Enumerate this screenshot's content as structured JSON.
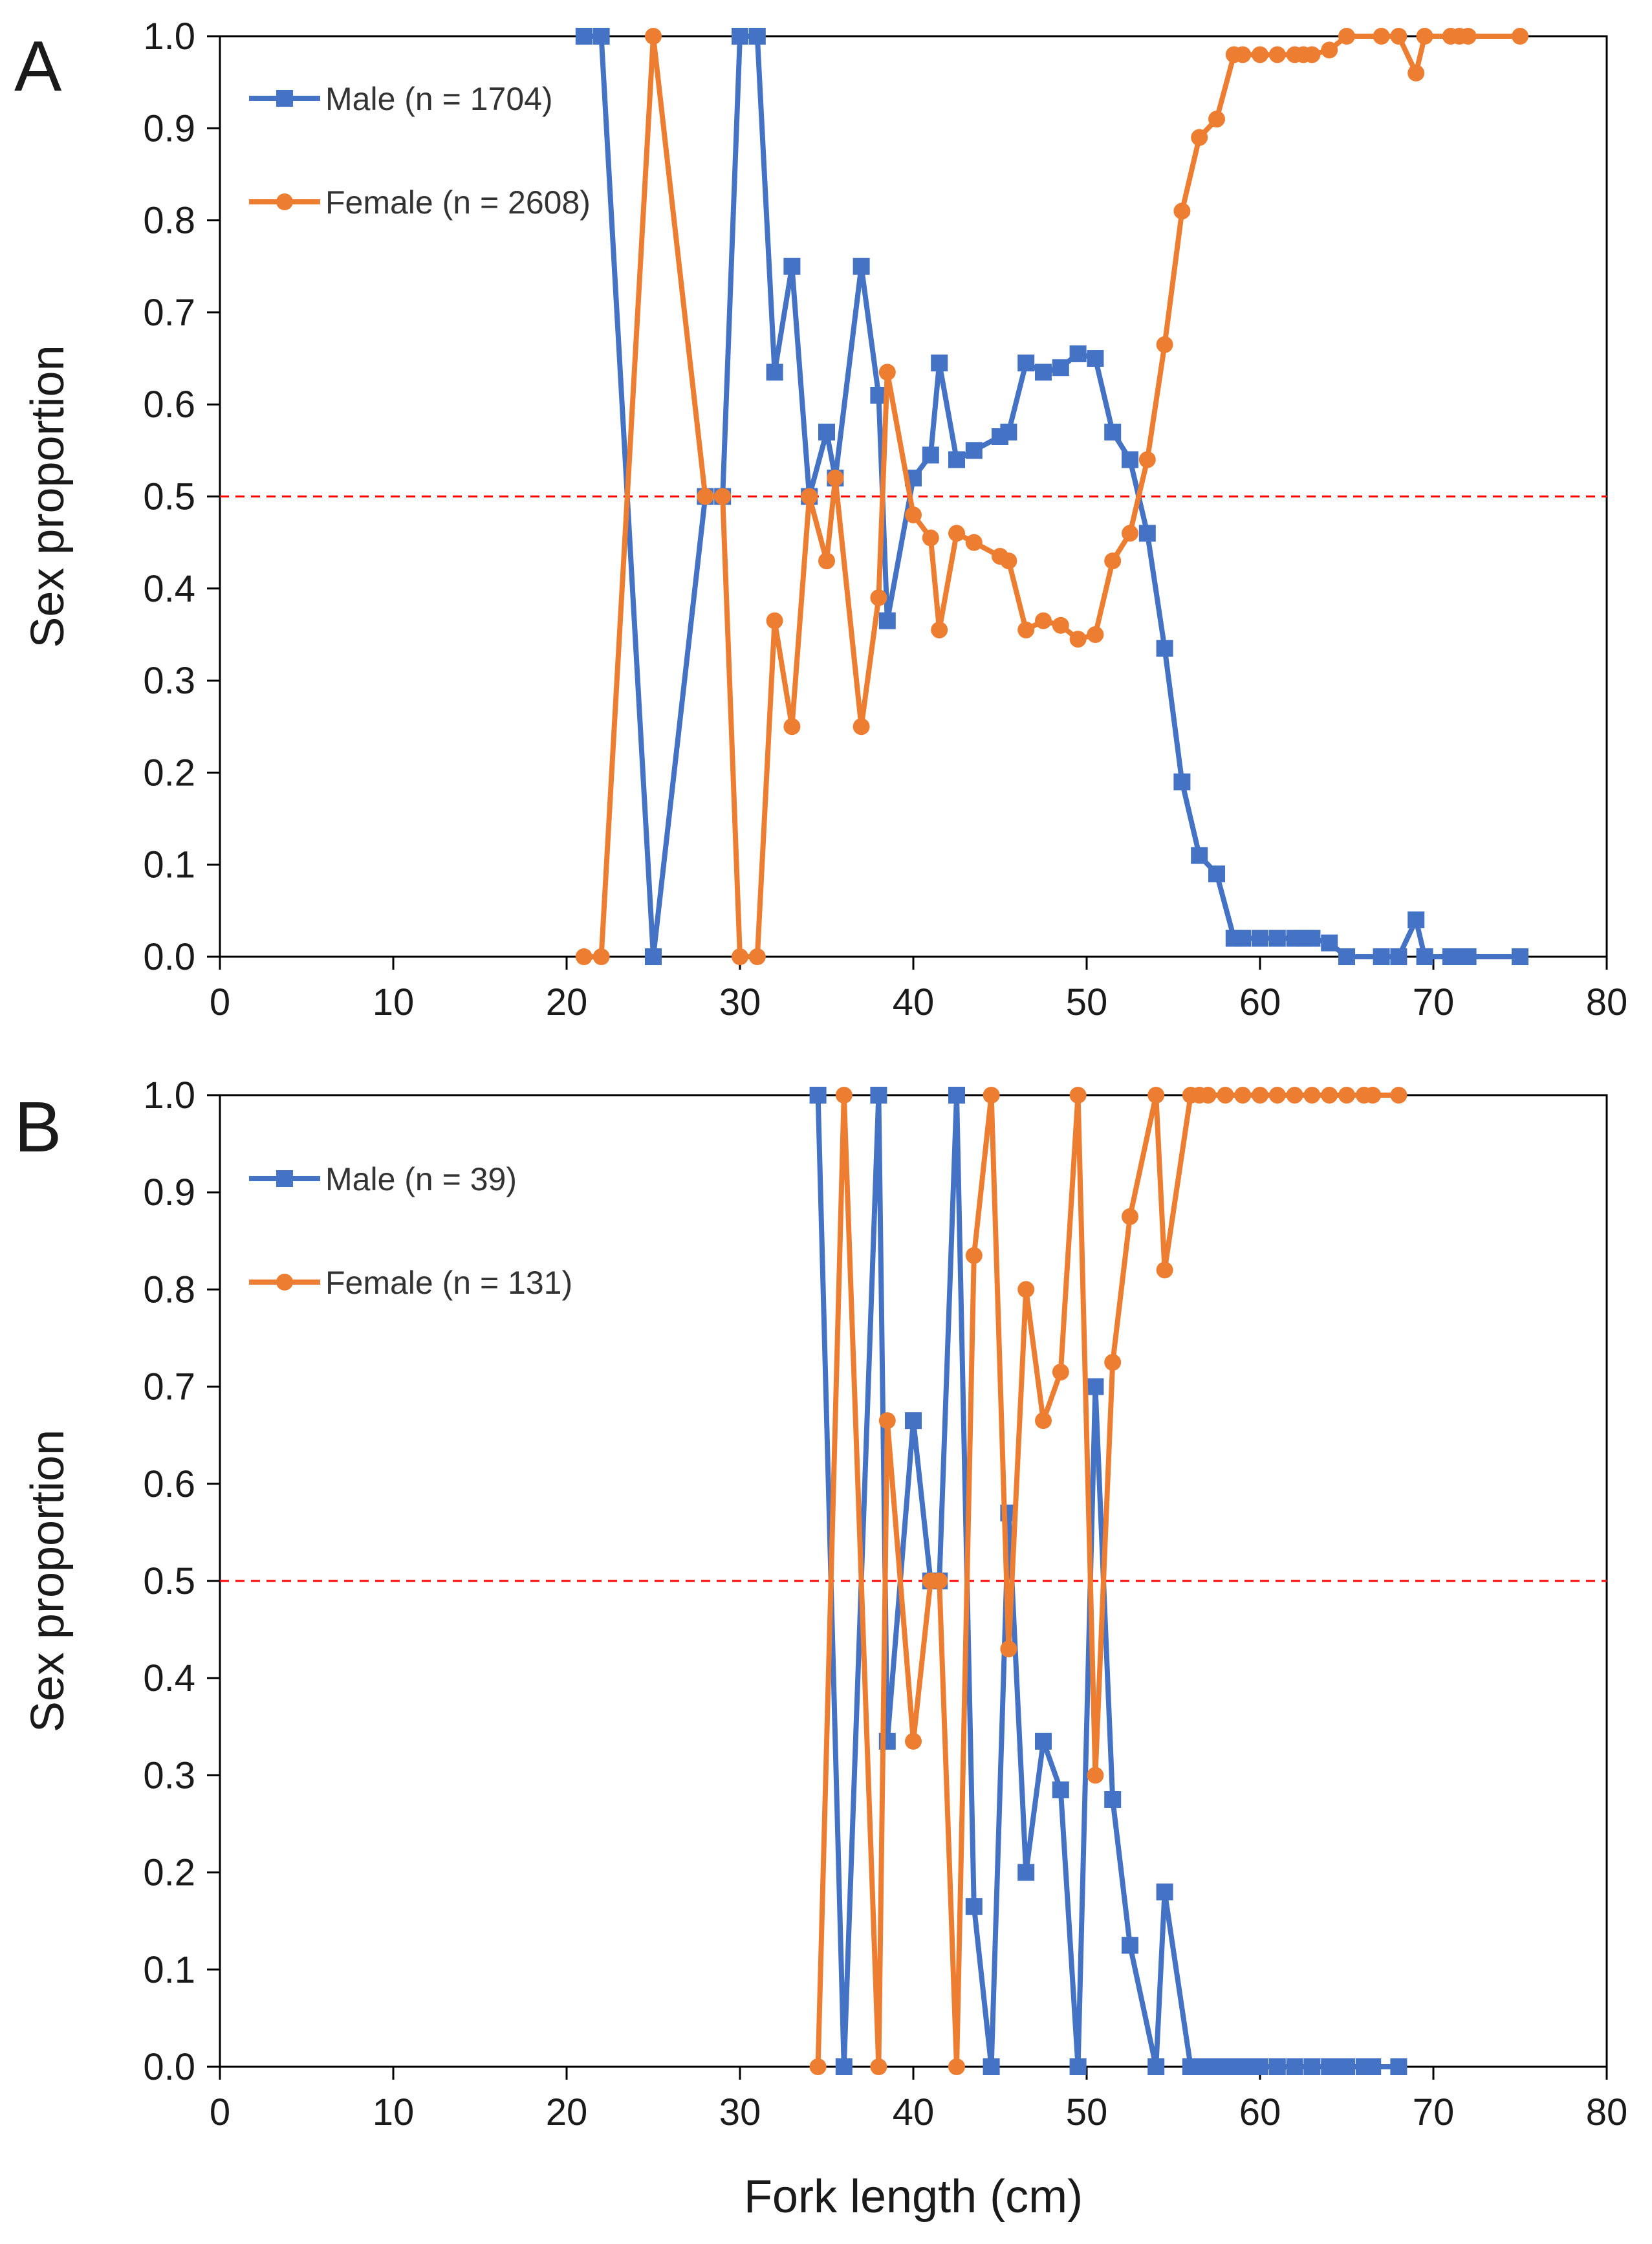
{
  "chart_data": [
    {
      "type": "line",
      "panel_label": "A",
      "xlabel": "",
      "ylabel": "Sex proportion",
      "xlim": [
        0,
        80
      ],
      "ylim": [
        0,
        1
      ],
      "x_ticks": [
        "0",
        "10",
        "20",
        "30",
        "40",
        "50",
        "60",
        "70",
        "80"
      ],
      "y_ticks": [
        "0.0",
        "0.1",
        "0.2",
        "0.3",
        "0.4",
        "0.5",
        "0.6",
        "0.7",
        "0.8",
        "0.9",
        "1.0"
      ],
      "reference_line": {
        "y": 0.5,
        "style": "dashed",
        "color": "#ff0000"
      },
      "grid": false,
      "legend_position": "top-left",
      "series": [
        {
          "name": "Male (n = 1704)",
          "color": "#4472c4",
          "marker": "square",
          "points": [
            [
              21,
              1
            ],
            [
              22,
              1
            ],
            [
              25,
              0
            ],
            [
              28,
              0.5
            ],
            [
              29,
              0.5
            ],
            [
              30,
              1
            ],
            [
              31,
              1
            ],
            [
              32,
              0.635
            ],
            [
              33,
              0.75
            ],
            [
              34,
              0.5
            ],
            [
              35,
              0.57
            ],
            [
              35.5,
              0.52
            ],
            [
              37,
              0.75
            ],
            [
              38,
              0.61
            ],
            [
              38.5,
              0.365
            ],
            [
              40,
              0.52
            ],
            [
              41,
              0.545
            ],
            [
              41.5,
              0.645
            ],
            [
              42.5,
              0.54
            ],
            [
              43.5,
              0.55
            ],
            [
              45,
              0.565
            ],
            [
              45.5,
              0.57
            ],
            [
              46.5,
              0.645
            ],
            [
              47.5,
              0.635
            ],
            [
              48.5,
              0.64
            ],
            [
              49.5,
              0.655
            ],
            [
              50.5,
              0.65
            ],
            [
              51.5,
              0.57
            ],
            [
              52.5,
              0.54
            ],
            [
              53.5,
              0.46
            ],
            [
              54.5,
              0.335
            ],
            [
              55.5,
              0.19
            ],
            [
              56.5,
              0.11
            ],
            [
              57.5,
              0.09
            ],
            [
              58.5,
              0.02
            ],
            [
              59,
              0.02
            ],
            [
              60,
              0.02
            ],
            [
              61,
              0.02
            ],
            [
              62,
              0.02
            ],
            [
              62.5,
              0.02
            ],
            [
              63,
              0.02
            ],
            [
              64,
              0.015
            ],
            [
              65,
              0.0
            ],
            [
              67,
              0.0
            ],
            [
              68,
              0.0
            ],
            [
              69,
              0.04
            ],
            [
              69.5,
              0.0
            ],
            [
              71,
              0.0
            ],
            [
              71.5,
              0.0
            ],
            [
              72,
              0.0
            ],
            [
              75,
              0.0
            ]
          ]
        },
        {
          "name": "Female (n = 2608)",
          "color": "#ed7d31",
          "marker": "circle",
          "points": [
            [
              21,
              0
            ],
            [
              22,
              0
            ],
            [
              25,
              1
            ],
            [
              28,
              0.5
            ],
            [
              29,
              0.5
            ],
            [
              30,
              0
            ],
            [
              31,
              0
            ],
            [
              32,
              0.365
            ],
            [
              33,
              0.25
            ],
            [
              34,
              0.5
            ],
            [
              35,
              0.43
            ],
            [
              35.5,
              0.52
            ],
            [
              37,
              0.25
            ],
            [
              38,
              0.39
            ],
            [
              38.5,
              0.635
            ],
            [
              40,
              0.48
            ],
            [
              41,
              0.455
            ],
            [
              41.5,
              0.355
            ],
            [
              42.5,
              0.46
            ],
            [
              43.5,
              0.45
            ],
            [
              45,
              0.435
            ],
            [
              45.5,
              0.43
            ],
            [
              46.5,
              0.355
            ],
            [
              47.5,
              0.365
            ],
            [
              48.5,
              0.36
            ],
            [
              49.5,
              0.345
            ],
            [
              50.5,
              0.35
            ],
            [
              51.5,
              0.43
            ],
            [
              52.5,
              0.46
            ],
            [
              53.5,
              0.54
            ],
            [
              54.5,
              0.665
            ],
            [
              55.5,
              0.81
            ],
            [
              56.5,
              0.89
            ],
            [
              57.5,
              0.91
            ],
            [
              58.5,
              0.98
            ],
            [
              59,
              0.98
            ],
            [
              60,
              0.98
            ],
            [
              61,
              0.98
            ],
            [
              62,
              0.98
            ],
            [
              62.5,
              0.98
            ],
            [
              63,
              0.98
            ],
            [
              64,
              0.985
            ],
            [
              65,
              1.0
            ],
            [
              67,
              1.0
            ],
            [
              68,
              1.0
            ],
            [
              69,
              0.96
            ],
            [
              69.5,
              1.0
            ],
            [
              71,
              1.0
            ],
            [
              71.5,
              1.0
            ],
            [
              72,
              1.0
            ],
            [
              75,
              1.0
            ]
          ]
        }
      ]
    },
    {
      "type": "line",
      "panel_label": "B",
      "xlabel": "Fork length  (cm)",
      "ylabel": "Sex proportion",
      "xlim": [
        0,
        80
      ],
      "ylim": [
        0,
        1
      ],
      "x_ticks": [
        "0",
        "10",
        "20",
        "30",
        "40",
        "50",
        "60",
        "70",
        "80"
      ],
      "y_ticks": [
        "0.0",
        "0.1",
        "0.2",
        "0.3",
        "0.4",
        "0.5",
        "0.6",
        "0.7",
        "0.8",
        "0.9",
        "1.0"
      ],
      "reference_line": {
        "y": 0.5,
        "style": "dashed",
        "color": "#ff0000"
      },
      "grid": false,
      "legend_position": "top-left",
      "series": [
        {
          "name": "Male (n = 39)",
          "color": "#4472c4",
          "marker": "square",
          "points": [
            [
              34.5,
              1
            ],
            [
              36,
              0
            ],
            [
              38,
              1
            ],
            [
              38.5,
              0.335
            ],
            [
              40,
              0.665
            ],
            [
              41,
              0.5
            ],
            [
              41.5,
              0.5
            ],
            [
              42.5,
              1
            ],
            [
              43.5,
              0.165
            ],
            [
              44.5,
              0
            ],
            [
              45.5,
              0.57
            ],
            [
              46.5,
              0.2
            ],
            [
              47.5,
              0.335
            ],
            [
              48.5,
              0.285
            ],
            [
              49.5,
              0
            ],
            [
              50.5,
              0.7
            ],
            [
              51.5,
              0.275
            ],
            [
              52.5,
              0.125
            ],
            [
              54,
              0
            ],
            [
              54.5,
              0.18
            ],
            [
              56,
              0
            ],
            [
              56.5,
              0
            ],
            [
              57,
              0
            ],
            [
              57.5,
              0
            ],
            [
              58,
              0
            ],
            [
              58.5,
              0
            ],
            [
              59,
              0
            ],
            [
              59.5,
              0
            ],
            [
              60,
              0
            ],
            [
              61,
              0
            ],
            [
              62,
              0
            ],
            [
              63,
              0
            ],
            [
              64,
              0
            ],
            [
              64.5,
              0
            ],
            [
              65,
              0
            ],
            [
              66,
              0
            ],
            [
              66.5,
              0
            ],
            [
              68,
              0
            ]
          ]
        },
        {
          "name": "Female (n = 131)",
          "color": "#ed7d31",
          "marker": "circle",
          "points": [
            [
              34.5,
              0
            ],
            [
              36,
              1
            ],
            [
              38,
              0
            ],
            [
              38.5,
              0.665
            ],
            [
              40,
              0.335
            ],
            [
              41,
              0.5
            ],
            [
              41.5,
              0.5
            ],
            [
              42.5,
              0
            ],
            [
              43.5,
              0.835
            ],
            [
              44.5,
              1
            ],
            [
              45.5,
              0.43
            ],
            [
              46.5,
              0.8
            ],
            [
              47.5,
              0.665
            ],
            [
              48.5,
              0.715
            ],
            [
              49.5,
              1
            ],
            [
              50.5,
              0.3
            ],
            [
              51.5,
              0.725
            ],
            [
              52.5,
              0.875
            ],
            [
              54,
              1
            ],
            [
              54.5,
              0.82
            ],
            [
              56,
              1
            ],
            [
              56.5,
              1
            ],
            [
              57,
              1
            ],
            [
              58,
              1
            ],
            [
              59,
              1
            ],
            [
              60,
              1
            ],
            [
              61,
              1
            ],
            [
              62,
              1
            ],
            [
              63,
              1
            ],
            [
              64,
              1
            ],
            [
              65,
              1
            ],
            [
              66,
              1
            ],
            [
              66.5,
              1
            ],
            [
              68,
              1
            ]
          ]
        }
      ]
    }
  ]
}
